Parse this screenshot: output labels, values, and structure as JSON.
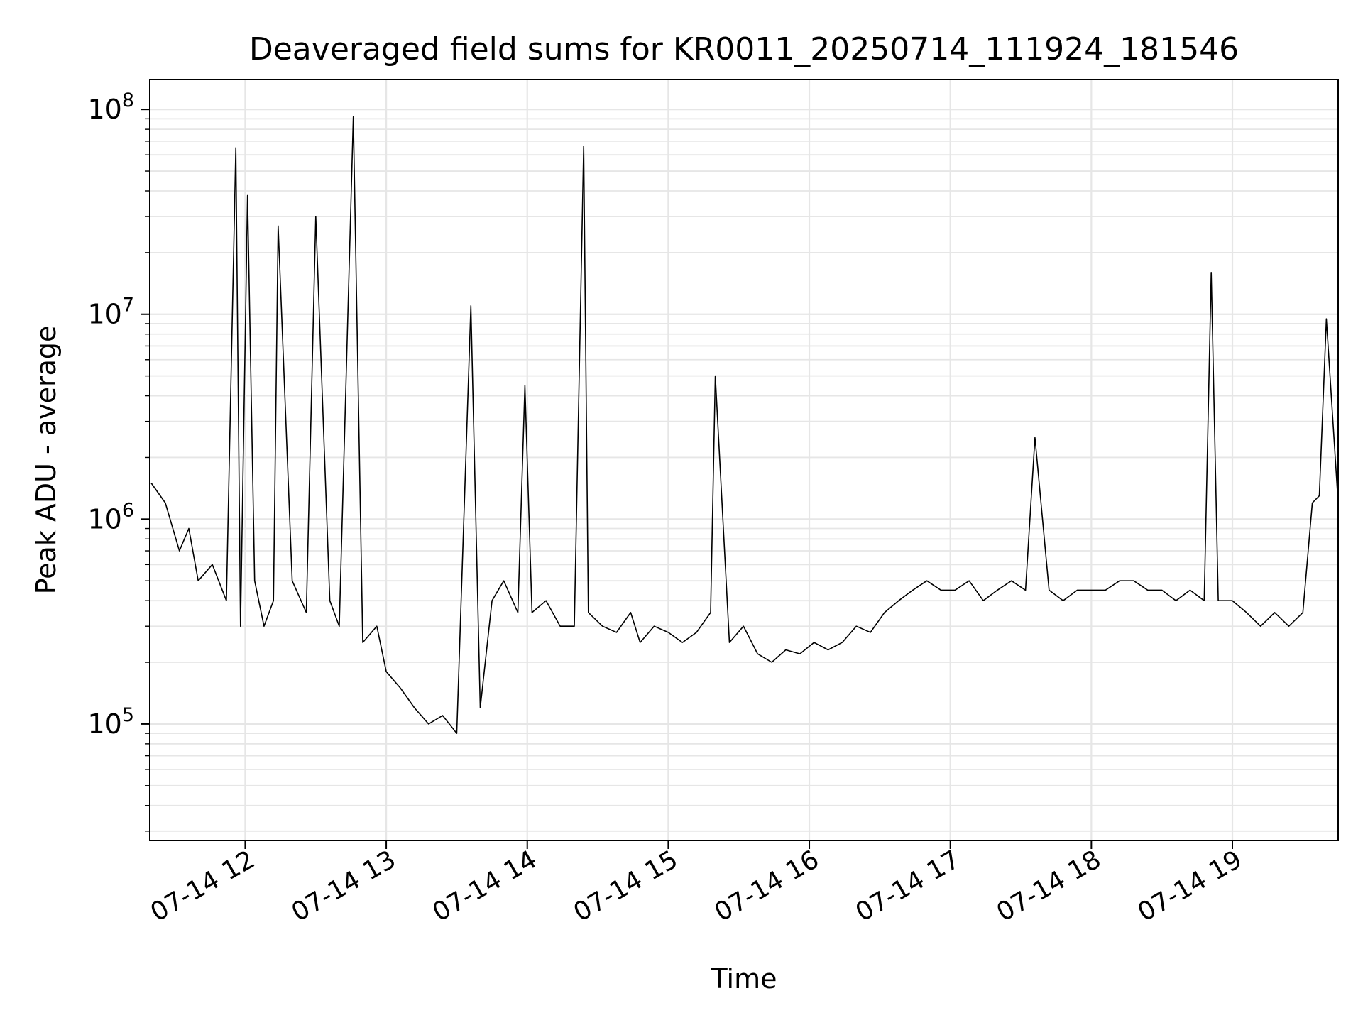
{
  "chart_data": {
    "type": "line",
    "title": "Deaveraged field sums for KR0011_20250714_111924_181546",
    "xlabel": "Time",
    "ylabel": "Peak ADU - average",
    "yscale": "log",
    "ylim": [
      27000,
      140000000
    ],
    "xlim": [
      "2025-07-14T11:19:24",
      "2025-07-14T19:45:00"
    ],
    "grid": true,
    "x_ticks": [
      {
        "value": "2025-07-14T12:00",
        "label": "07-14 12"
      },
      {
        "value": "2025-07-14T13:00",
        "label": "07-14 13"
      },
      {
        "value": "2025-07-14T14:00",
        "label": "07-14 14"
      },
      {
        "value": "2025-07-14T15:00",
        "label": "07-14 15"
      },
      {
        "value": "2025-07-14T16:00",
        "label": "07-14 16"
      },
      {
        "value": "2025-07-14T17:00",
        "label": "07-14 17"
      },
      {
        "value": "2025-07-14T18:00",
        "label": "07-14 18"
      },
      {
        "value": "2025-07-14T19:00",
        "label": "07-14 19"
      }
    ],
    "y_ticks": [
      {
        "value": 100000,
        "base": "10",
        "exp": "5"
      },
      {
        "value": 1000000,
        "base": "10",
        "exp": "6"
      },
      {
        "value": 10000000,
        "base": "10",
        "exp": "7"
      },
      {
        "value": 100000000,
        "base": "10",
        "exp": "8"
      }
    ],
    "series": [
      {
        "color": "#000000",
        "x": [
          "11:20",
          "11:26",
          "11:32",
          "11:36",
          "11:40",
          "11:46",
          "11:52",
          "11:56",
          "11:58",
          "12:01",
          "12:04",
          "12:08",
          "12:12",
          "12:14",
          "12:20",
          "12:26",
          "12:30",
          "12:36",
          "12:40",
          "12:46",
          "12:50",
          "12:56",
          "13:00",
          "13:06",
          "13:12",
          "13:18",
          "13:24",
          "13:30",
          "13:36",
          "13:40",
          "13:45",
          "13:50",
          "13:56",
          "13:59",
          "14:02",
          "14:08",
          "14:14",
          "14:20",
          "14:24",
          "14:26",
          "14:32",
          "14:38",
          "14:44",
          "14:48",
          "14:54",
          "15:00",
          "15:06",
          "15:12",
          "15:18",
          "15:20",
          "15:26",
          "15:32",
          "15:38",
          "15:44",
          "15:50",
          "15:56",
          "16:02",
          "16:08",
          "16:14",
          "16:20",
          "16:26",
          "16:32",
          "16:38",
          "16:44",
          "16:50",
          "16:56",
          "17:02",
          "17:08",
          "17:14",
          "17:20",
          "17:26",
          "17:32",
          "17:36",
          "17:42",
          "17:48",
          "17:54",
          "18:00",
          "18:06",
          "18:12",
          "18:18",
          "18:24",
          "18:30",
          "18:36",
          "18:42",
          "18:48",
          "18:51",
          "18:54",
          "19:00",
          "19:06",
          "19:12",
          "19:18",
          "19:24",
          "19:30",
          "19:34",
          "19:37",
          "19:40",
          "19:45"
        ],
        "y": [
          1500000,
          1200000,
          700000,
          900000,
          500000,
          600000,
          400000,
          65000000,
          300000,
          38000000,
          500000,
          300000,
          400000,
          27000000,
          500000,
          350000,
          30000000,
          400000,
          300000,
          92000000,
          250000,
          300000,
          180000,
          150000,
          120000,
          100000,
          110000,
          90000,
          11000000,
          120000,
          400000,
          500000,
          350000,
          4500000,
          350000,
          400000,
          300000,
          300000,
          66000000,
          350000,
          300000,
          280000,
          350000,
          250000,
          300000,
          280000,
          250000,
          280000,
          350000,
          5000000,
          250000,
          300000,
          220000,
          200000,
          230000,
          220000,
          250000,
          230000,
          250000,
          300000,
          280000,
          350000,
          400000,
          450000,
          500000,
          450000,
          450000,
          500000,
          400000,
          450000,
          500000,
          450000,
          2500000,
          450000,
          400000,
          450000,
          450000,
          450000,
          500000,
          500000,
          450000,
          450000,
          400000,
          450000,
          400000,
          16000000,
          400000,
          400000,
          350000,
          300000,
          350000,
          300000,
          350000,
          1200000,
          1300000,
          9500000,
          1200000
        ]
      }
    ]
  }
}
